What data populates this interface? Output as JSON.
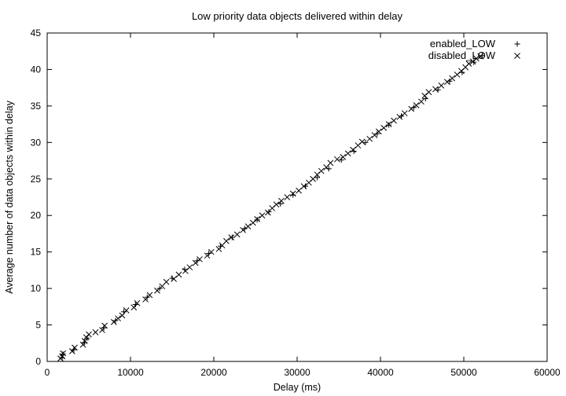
{
  "chart_data": {
    "type": "scatter",
    "title": "Low priority data objects delivered within delay",
    "xlabel": "Delay (ms)",
    "ylabel": "Average number of data objects within delay",
    "xlim": [
      0,
      60000
    ],
    "ylim": [
      0,
      45
    ],
    "xticks": [
      0,
      10000,
      20000,
      30000,
      40000,
      50000,
      60000
    ],
    "yticks": [
      0,
      5,
      10,
      15,
      20,
      25,
      30,
      35,
      40,
      45
    ],
    "grid": false,
    "legend_position": "top-right",
    "series": [
      {
        "name": "enabled_LOW",
        "marker": "plus",
        "color": "#000000",
        "points": [
          [
            1800,
            0.5
          ],
          [
            1900,
            1.0
          ],
          [
            3200,
            1.6
          ],
          [
            4500,
            2.6
          ],
          [
            4800,
            3.2
          ],
          [
            6800,
            4.6
          ],
          [
            8200,
            5.6
          ],
          [
            9200,
            6.8
          ],
          [
            10600,
            7.8
          ],
          [
            12000,
            8.8
          ],
          [
            13500,
            10.0
          ],
          [
            15000,
            11.4
          ],
          [
            16500,
            12.6
          ],
          [
            18000,
            13.8
          ],
          [
            19400,
            14.8
          ],
          [
            20800,
            15.8
          ],
          [
            22200,
            17.0
          ],
          [
            23700,
            18.2
          ],
          [
            25200,
            19.4
          ],
          [
            26600,
            20.5
          ],
          [
            28000,
            21.6
          ],
          [
            29500,
            22.8
          ],
          [
            31000,
            24.0
          ],
          [
            32400,
            25.2
          ],
          [
            33800,
            26.4
          ],
          [
            35300,
            27.6
          ],
          [
            36800,
            28.8
          ],
          [
            38200,
            30.0
          ],
          [
            39600,
            31.2
          ],
          [
            41000,
            32.4
          ],
          [
            42500,
            33.6
          ],
          [
            44000,
            34.8
          ],
          [
            45400,
            36.0
          ],
          [
            46900,
            37.2
          ],
          [
            48300,
            38.4
          ],
          [
            49800,
            39.6
          ],
          [
            51200,
            41.0
          ],
          [
            52200,
            41.9
          ]
        ]
      },
      {
        "name": "disabled_LOW",
        "marker": "cross",
        "color": "#000000",
        "points": [
          [
            1600,
            0.4
          ],
          [
            1800,
            0.7
          ],
          [
            1900,
            1.1
          ],
          [
            3000,
            1.4
          ],
          [
            3300,
            1.9
          ],
          [
            4300,
            2.3
          ],
          [
            4500,
            2.8
          ],
          [
            4700,
            3.3
          ],
          [
            5000,
            3.7
          ],
          [
            5800,
            4.0
          ],
          [
            6600,
            4.3
          ],
          [
            6900,
            4.9
          ],
          [
            8000,
            5.4
          ],
          [
            8500,
            5.9
          ],
          [
            9000,
            6.3
          ],
          [
            9500,
            7.0
          ],
          [
            10400,
            7.4
          ],
          [
            10800,
            8.0
          ],
          [
            11800,
            8.5
          ],
          [
            12300,
            9.1
          ],
          [
            13200,
            9.7
          ],
          [
            13800,
            10.3
          ],
          [
            14300,
            10.9
          ],
          [
            15200,
            11.3
          ],
          [
            15800,
            11.9
          ],
          [
            16600,
            12.4
          ],
          [
            17100,
            12.9
          ],
          [
            17800,
            13.5
          ],
          [
            18300,
            14.0
          ],
          [
            19200,
            14.5
          ],
          [
            19700,
            15.0
          ],
          [
            20600,
            15.4
          ],
          [
            21000,
            15.9
          ],
          [
            21500,
            16.5
          ],
          [
            22100,
            17.0
          ],
          [
            22800,
            17.4
          ],
          [
            23500,
            18.0
          ],
          [
            24100,
            18.5
          ],
          [
            24700,
            19.0
          ],
          [
            25200,
            19.5
          ],
          [
            25800,
            20.0
          ],
          [
            26500,
            20.4
          ],
          [
            27000,
            21.0
          ],
          [
            27500,
            21.5
          ],
          [
            28100,
            22.0
          ],
          [
            28800,
            22.5
          ],
          [
            29500,
            23.0
          ],
          [
            30200,
            23.4
          ],
          [
            30800,
            24.0
          ],
          [
            31400,
            24.5
          ],
          [
            31900,
            25.0
          ],
          [
            32400,
            25.6
          ],
          [
            32900,
            26.1
          ],
          [
            33500,
            26.6
          ],
          [
            34000,
            27.2
          ],
          [
            34800,
            27.7
          ],
          [
            35500,
            28.0
          ],
          [
            36100,
            28.5
          ],
          [
            36700,
            29.0
          ],
          [
            37300,
            29.6
          ],
          [
            37800,
            30.1
          ],
          [
            38700,
            30.5
          ],
          [
            39300,
            31.0
          ],
          [
            39800,
            31.5
          ],
          [
            40400,
            32.0
          ],
          [
            41000,
            32.5
          ],
          [
            41600,
            33.0
          ],
          [
            42300,
            33.5
          ],
          [
            42900,
            34.0
          ],
          [
            43700,
            34.6
          ],
          [
            44300,
            35.1
          ],
          [
            44900,
            35.6
          ],
          [
            45300,
            36.4
          ],
          [
            45800,
            36.9
          ],
          [
            46600,
            37.3
          ],
          [
            47300,
            37.8
          ],
          [
            48000,
            38.3
          ],
          [
            48600,
            38.8
          ],
          [
            49200,
            39.3
          ],
          [
            49700,
            39.8
          ],
          [
            50200,
            40.3
          ],
          [
            50600,
            40.8
          ],
          [
            51100,
            41.1
          ],
          [
            51500,
            41.5
          ],
          [
            52000,
            41.8
          ]
        ]
      }
    ]
  }
}
